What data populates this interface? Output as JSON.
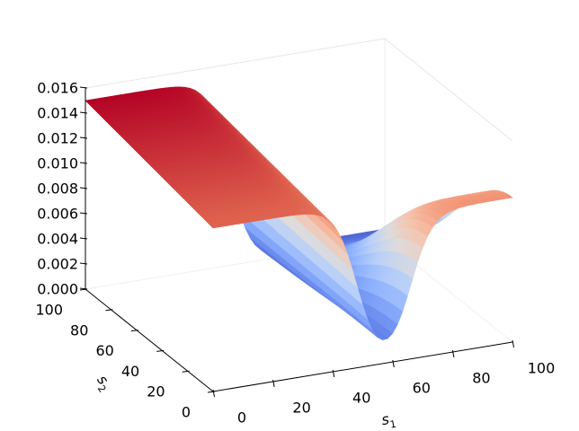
{
  "chart_data": {
    "type": "surface3d",
    "title": "",
    "colormap": "coolwarm",
    "colormap_colors": [
      "#3b4cc0",
      "#b40426"
    ],
    "grid": false,
    "x_axis": {
      "label": "s",
      "label_subscript": "1",
      "range": [
        0,
        100
      ],
      "ticks": [
        0,
        20,
        40,
        60,
        80,
        100
      ],
      "tick_labels": [
        "0",
        "20",
        "40",
        "60",
        "80",
        "100"
      ]
    },
    "y_axis": {
      "label": "s",
      "label_subscript": "2",
      "range": [
        0,
        100
      ],
      "ticks": [
        0,
        20,
        40,
        60,
        80,
        100
      ],
      "tick_labels": [
        "0",
        "20",
        "40",
        "60",
        "80",
        "100"
      ]
    },
    "z_axis": {
      "label": "",
      "range": [
        0,
        0.016
      ],
      "ticks": [
        0,
        0.002,
        0.004,
        0.006,
        0.008,
        0.01,
        0.012,
        0.014,
        0.016
      ],
      "tick_labels": [
        "0.000",
        "0.002",
        "0.004",
        "0.006",
        "0.008",
        "0.010",
        "0.012",
        "0.014",
        "0.016"
      ]
    },
    "surface": {
      "description_of_shape": "high plateau for s1 < ~45 across all s2 (peak ~0.015 near s2=100, ~0.013 near s2=0), drops to ~0 in a valley around s1 ~ 45-60, rises again to ~0.0115 ridge for s1 >~ 65 near s2=0, falling off toward s2=100",
      "x": [
        0,
        10,
        20,
        30,
        40,
        50,
        60,
        70,
        80,
        90,
        100
      ],
      "y": [
        0,
        10,
        20,
        30,
        40,
        50,
        60,
        70,
        80,
        90,
        100
      ],
      "z_samples": [
        {
          "s1": 0,
          "s2": 0,
          "z": 0.013
        },
        {
          "s1": 0,
          "s2": 100,
          "z": 0.0152
        },
        {
          "s1": 50,
          "s2": 0,
          "z": 0.0005
        },
        {
          "s1": 80,
          "s2": 0,
          "z": 0.0115
        },
        {
          "s1": 100,
          "s2": 100,
          "z": 0.0
        }
      ]
    }
  }
}
